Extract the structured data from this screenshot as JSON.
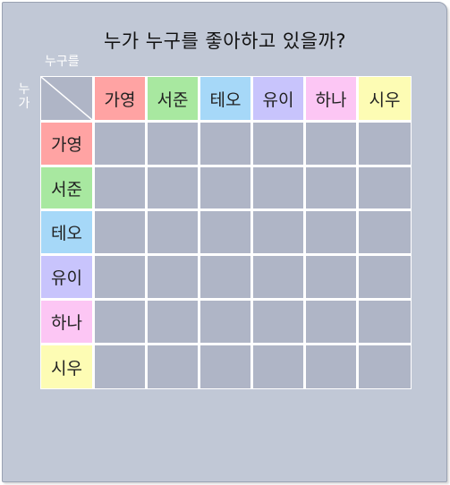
{
  "title": "누가 누구를 좋아하고 있을까?",
  "col_axis_label": "누구를",
  "row_axis_label": "누가",
  "names": [
    "가영",
    "서준",
    "테오",
    "유이",
    "하나",
    "시우"
  ],
  "colors": {
    "가영": "#ffa3a3",
    "서준": "#a8e8a0",
    "테오": "#a6d8f8",
    "유이": "#c8c4fc",
    "하나": "#fcc6f4",
    "시우": "#fdfcb4"
  },
  "grid_cell_color": "#afb5c6"
}
